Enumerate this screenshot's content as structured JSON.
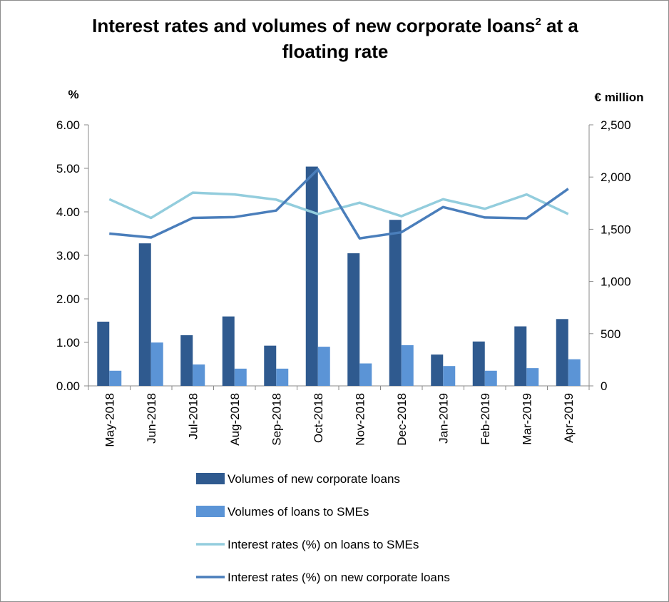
{
  "chart_data": {
    "type": "bar",
    "title_main": "Interest rates and volumes of new corporate loans",
    "title_sup": "2",
    "title_tail": " at a floating rate",
    "categories": [
      "May-2018",
      "Jun-2018",
      "Jul-2018",
      "Aug-2018",
      "Sep-2018",
      "Oct-2018",
      "Nov-2018",
      "Dec-2018",
      "Jan-2019",
      "Feb-2019",
      "Mar-2019",
      "Apr-2019"
    ],
    "left_axis": {
      "unit": "%",
      "ylim": [
        0,
        6
      ],
      "ticks": [
        "0.00",
        "1.00",
        "2.00",
        "3.00",
        "4.00",
        "5.00",
        "6.00"
      ]
    },
    "right_axis": {
      "unit": "€ million",
      "ylim": [
        0,
        2500
      ],
      "ticks": [
        "0",
        "500",
        "1,000",
        "1,500",
        "2,000",
        "2,500"
      ]
    },
    "series": [
      {
        "name": "Volumes of new corporate loans",
        "kind": "bar",
        "axis": "right",
        "color": "#2f5a8f",
        "values": [
          615,
          1365,
          485,
          665,
          385,
          2100,
          1270,
          1590,
          300,
          425,
          570,
          640
        ]
      },
      {
        "name": "Volumes of loans to SMEs",
        "kind": "bar",
        "axis": "right",
        "color": "#5b94d6",
        "values": [
          145,
          415,
          205,
          165,
          165,
          375,
          215,
          390,
          190,
          145,
          170,
          255
        ]
      },
      {
        "name": "Interest rates (%) on loans to SMEs",
        "kind": "line",
        "axis": "left",
        "color": "#93cddd",
        "values": [
          4.29,
          3.86,
          4.44,
          4.4,
          4.28,
          3.95,
          4.21,
          3.9,
          4.29,
          4.07,
          4.4,
          3.95
        ]
      },
      {
        "name": "Interest rates (%) on new corporate loans",
        "kind": "line",
        "axis": "left",
        "color": "#4a7ebb",
        "values": [
          3.5,
          3.41,
          3.86,
          3.88,
          4.03,
          4.98,
          3.39,
          3.53,
          4.11,
          3.87,
          3.85,
          4.53
        ]
      }
    ],
    "grid": false,
    "legend_position": "bottom"
  }
}
